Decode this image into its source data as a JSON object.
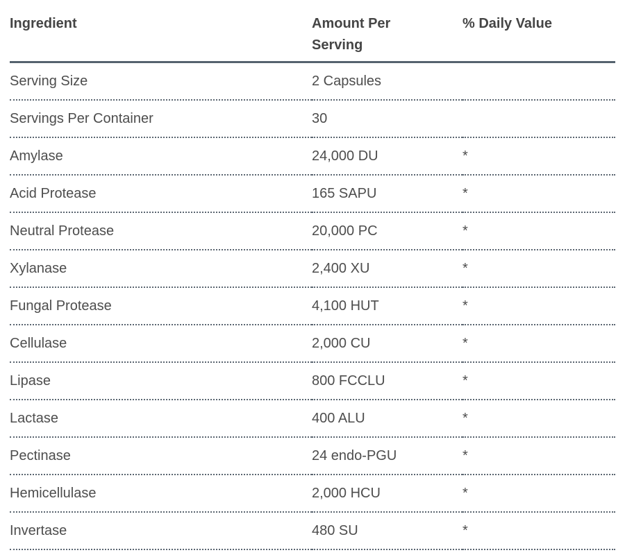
{
  "colors": {
    "background": "#ffffff",
    "header_text": "#454545",
    "body_text": "#4d4d4d",
    "header_rule": "#55626e",
    "row_rule_dotted": "#5a6570"
  },
  "table": {
    "columns": [
      {
        "key": "ingredient",
        "label": "Ingredient"
      },
      {
        "key": "amount",
        "label": "Amount Per Serving"
      },
      {
        "key": "daily_value",
        "label": "% Daily Value"
      }
    ],
    "rows": [
      {
        "ingredient": "Serving Size",
        "amount": "2 Capsules",
        "daily_value": ""
      },
      {
        "ingredient": "Servings Per Container",
        "amount": "30",
        "daily_value": ""
      },
      {
        "ingredient": "Amylase",
        "amount": "24,000 DU",
        "daily_value": "*"
      },
      {
        "ingredient": "Acid Protease",
        "amount": "165 SAPU",
        "daily_value": "*"
      },
      {
        "ingredient": "Neutral Protease",
        "amount": "20,000 PC",
        "daily_value": "*"
      },
      {
        "ingredient": "Xylanase",
        "amount": "2,400 XU",
        "daily_value": "*"
      },
      {
        "ingredient": "Fungal Protease",
        "amount": "4,100 HUT",
        "daily_value": "*"
      },
      {
        "ingredient": "Cellulase",
        "amount": "2,000 CU",
        "daily_value": "*"
      },
      {
        "ingredient": "Lipase",
        "amount": "800 FCCLU",
        "daily_value": "*"
      },
      {
        "ingredient": "Lactase",
        "amount": "400 ALU",
        "daily_value": "*"
      },
      {
        "ingredient": "Pectinase",
        "amount": "24 endo-PGU",
        "daily_value": "*"
      },
      {
        "ingredient": "Hemicellulase",
        "amount": "2,000 HCU",
        "daily_value": "*"
      },
      {
        "ingredient": "Invertase",
        "amount": "480 SU",
        "daily_value": "*"
      }
    ]
  }
}
